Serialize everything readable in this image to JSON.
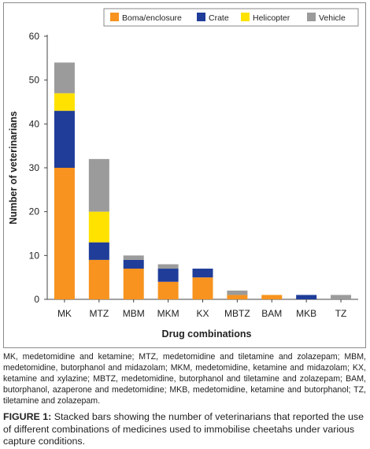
{
  "chart_data": {
    "type": "bar",
    "stacked": true,
    "categories": [
      "MK",
      "MTZ",
      "MBM",
      "MKM",
      "KX",
      "MBTZ",
      "BAM",
      "MKB",
      "TZ"
    ],
    "series": [
      {
        "name": "Boma/enclosure",
        "color": "#f7931e",
        "values": [
          30,
          9,
          7,
          4,
          5,
          1,
          1,
          0,
          0
        ]
      },
      {
        "name": "Crate",
        "color": "#1f3d99",
        "values": [
          13,
          4,
          2,
          3,
          2,
          0,
          0,
          1,
          0
        ]
      },
      {
        "name": "Helicopter",
        "color": "#ffe200",
        "values": [
          4,
          7,
          0,
          0,
          0,
          0,
          0,
          0,
          0
        ]
      },
      {
        "name": "Vehicle",
        "color": "#9b9b9b",
        "values": [
          7,
          12,
          1,
          1,
          0,
          1,
          0,
          0,
          1
        ]
      }
    ],
    "xlabel": "Drug combinations",
    "ylabel": "Number of veterinarians",
    "ylim": [
      0,
      60
    ],
    "yticks": [
      0,
      10,
      20,
      30,
      40,
      50,
      60
    ],
    "grid": false,
    "legend": "top-right"
  },
  "captions": {
    "abbreviations": "MK, medetomidine and ketamine; MTZ, medetomidine and tiletamine and zolazepam; MBM, medetomidine, butorphanol and midazolam; MKM, medetomidine, ketamine and midazolam; KX, ketamine and xylazine; MBTZ, medetomidine, butorphanol and tiletamine and zolazepam; BAM, butorphanol, azaperone and medetomidine; MKB, medetomidine, ketamine and butorphanol; TZ, tiletamine and zolazepam.",
    "figure_label": "FIGURE 1:",
    "figure_text": " Stacked bars showing the number of veterinarians that reported the use of different combinations of medicines used to immobilise cheetahs under various capture conditions."
  }
}
